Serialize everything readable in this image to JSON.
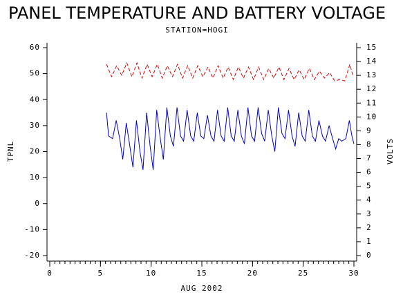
{
  "chart_data": {
    "type": "line",
    "title": "PANEL TEMPERATURE AND BATTERY VOLTAGE",
    "subtitle": "STATION=HOGI",
    "xlabel": "AUG 2002",
    "ylabel": "TPNL",
    "y2label": "VOLTS",
    "xlim": [
      0,
      30
    ],
    "xticks": [
      0,
      5,
      10,
      15,
      20,
      25,
      30
    ],
    "ylim": [
      -20,
      60
    ],
    "yticks": [
      -20,
      -10,
      0,
      10,
      20,
      30,
      40,
      50,
      60
    ],
    "y2lim": [
      0,
      15
    ],
    "y2ticks": [
      0,
      1,
      2,
      3,
      4,
      5,
      6,
      7,
      8,
      9,
      10,
      11,
      12,
      13,
      14,
      15
    ],
    "series": [
      {
        "name": "TPNL",
        "color": "#0000cc",
        "dash": false,
        "x": [
          5.6,
          5.8,
          6.0,
          6.2,
          6.55,
          6.9,
          7.2,
          7.55,
          7.9,
          8.2,
          8.55,
          8.9,
          9.2,
          9.55,
          9.9,
          10.2,
          10.55,
          10.9,
          11.2,
          11.55,
          11.9,
          12.2,
          12.55,
          12.9,
          13.2,
          13.55,
          13.9,
          14.2,
          14.55,
          14.9,
          15.2,
          15.55,
          15.9,
          16.2,
          16.55,
          16.9,
          17.2,
          17.55,
          17.9,
          18.2,
          18.55,
          18.9,
          19.2,
          19.55,
          19.9,
          20.2,
          20.55,
          20.9,
          21.2,
          21.55,
          21.9,
          22.2,
          22.55,
          22.9,
          23.2,
          23.55,
          23.9,
          24.2,
          24.55,
          24.9,
          25.2,
          25.55,
          25.9,
          26.2,
          26.55,
          26.9,
          27.2,
          27.55,
          27.9,
          28.2,
          28.5,
          28.8,
          29.2,
          29.55,
          29.8,
          30.0
        ],
        "values": [
          35,
          26,
          25.5,
          25,
          32,
          25,
          17,
          31,
          22,
          14,
          32,
          20,
          13,
          35,
          22,
          13,
          36,
          25,
          17,
          37,
          26,
          22,
          37,
          26,
          24,
          36,
          26,
          24,
          35,
          26,
          25,
          34,
          26,
          24,
          36,
          26,
          24,
          37,
          26,
          24,
          36,
          26,
          23,
          37,
          26,
          24,
          37,
          27,
          24,
          36,
          26,
          20,
          37,
          27,
          25,
          36,
          26,
          22,
          35,
          26,
          24,
          36,
          26,
          24,
          32,
          26,
          24,
          30,
          25,
          21,
          25,
          24,
          25,
          32,
          26,
          23
        ]
      },
      {
        "name": "VOLTS",
        "color": "#dd0000",
        "dash": true,
        "axis": "y2",
        "x": [
          5.6,
          6.1,
          6.6,
          7.1,
          7.6,
          8.1,
          8.6,
          9.1,
          9.6,
          10.1,
          10.6,
          11.1,
          11.6,
          12.1,
          12.6,
          13.1,
          13.6,
          14.1,
          14.6,
          15.1,
          15.6,
          16.1,
          16.6,
          17.1,
          17.6,
          18.1,
          18.6,
          19.1,
          19.6,
          20.1,
          20.6,
          21.1,
          21.6,
          22.1,
          22.6,
          23.1,
          23.6,
          24.1,
          24.6,
          25.1,
          25.6,
          26.1,
          26.6,
          27.1,
          27.6,
          28.1,
          28.6,
          29.1,
          29.6,
          29.9
        ],
        "values": [
          13.8,
          12.9,
          13.7,
          13.0,
          13.9,
          12.9,
          13.9,
          12.8,
          13.8,
          12.9,
          13.8,
          12.8,
          13.7,
          12.9,
          13.8,
          12.8,
          13.7,
          12.8,
          13.7,
          12.9,
          13.6,
          12.8,
          13.7,
          12.8,
          13.6,
          12.7,
          13.6,
          12.8,
          13.6,
          12.7,
          13.6,
          12.7,
          13.5,
          12.8,
          13.6,
          12.7,
          13.5,
          12.7,
          13.4,
          12.7,
          13.5,
          12.7,
          13.3,
          12.8,
          13.2,
          12.6,
          12.7,
          12.6,
          13.8,
          13.0
        ]
      }
    ]
  }
}
